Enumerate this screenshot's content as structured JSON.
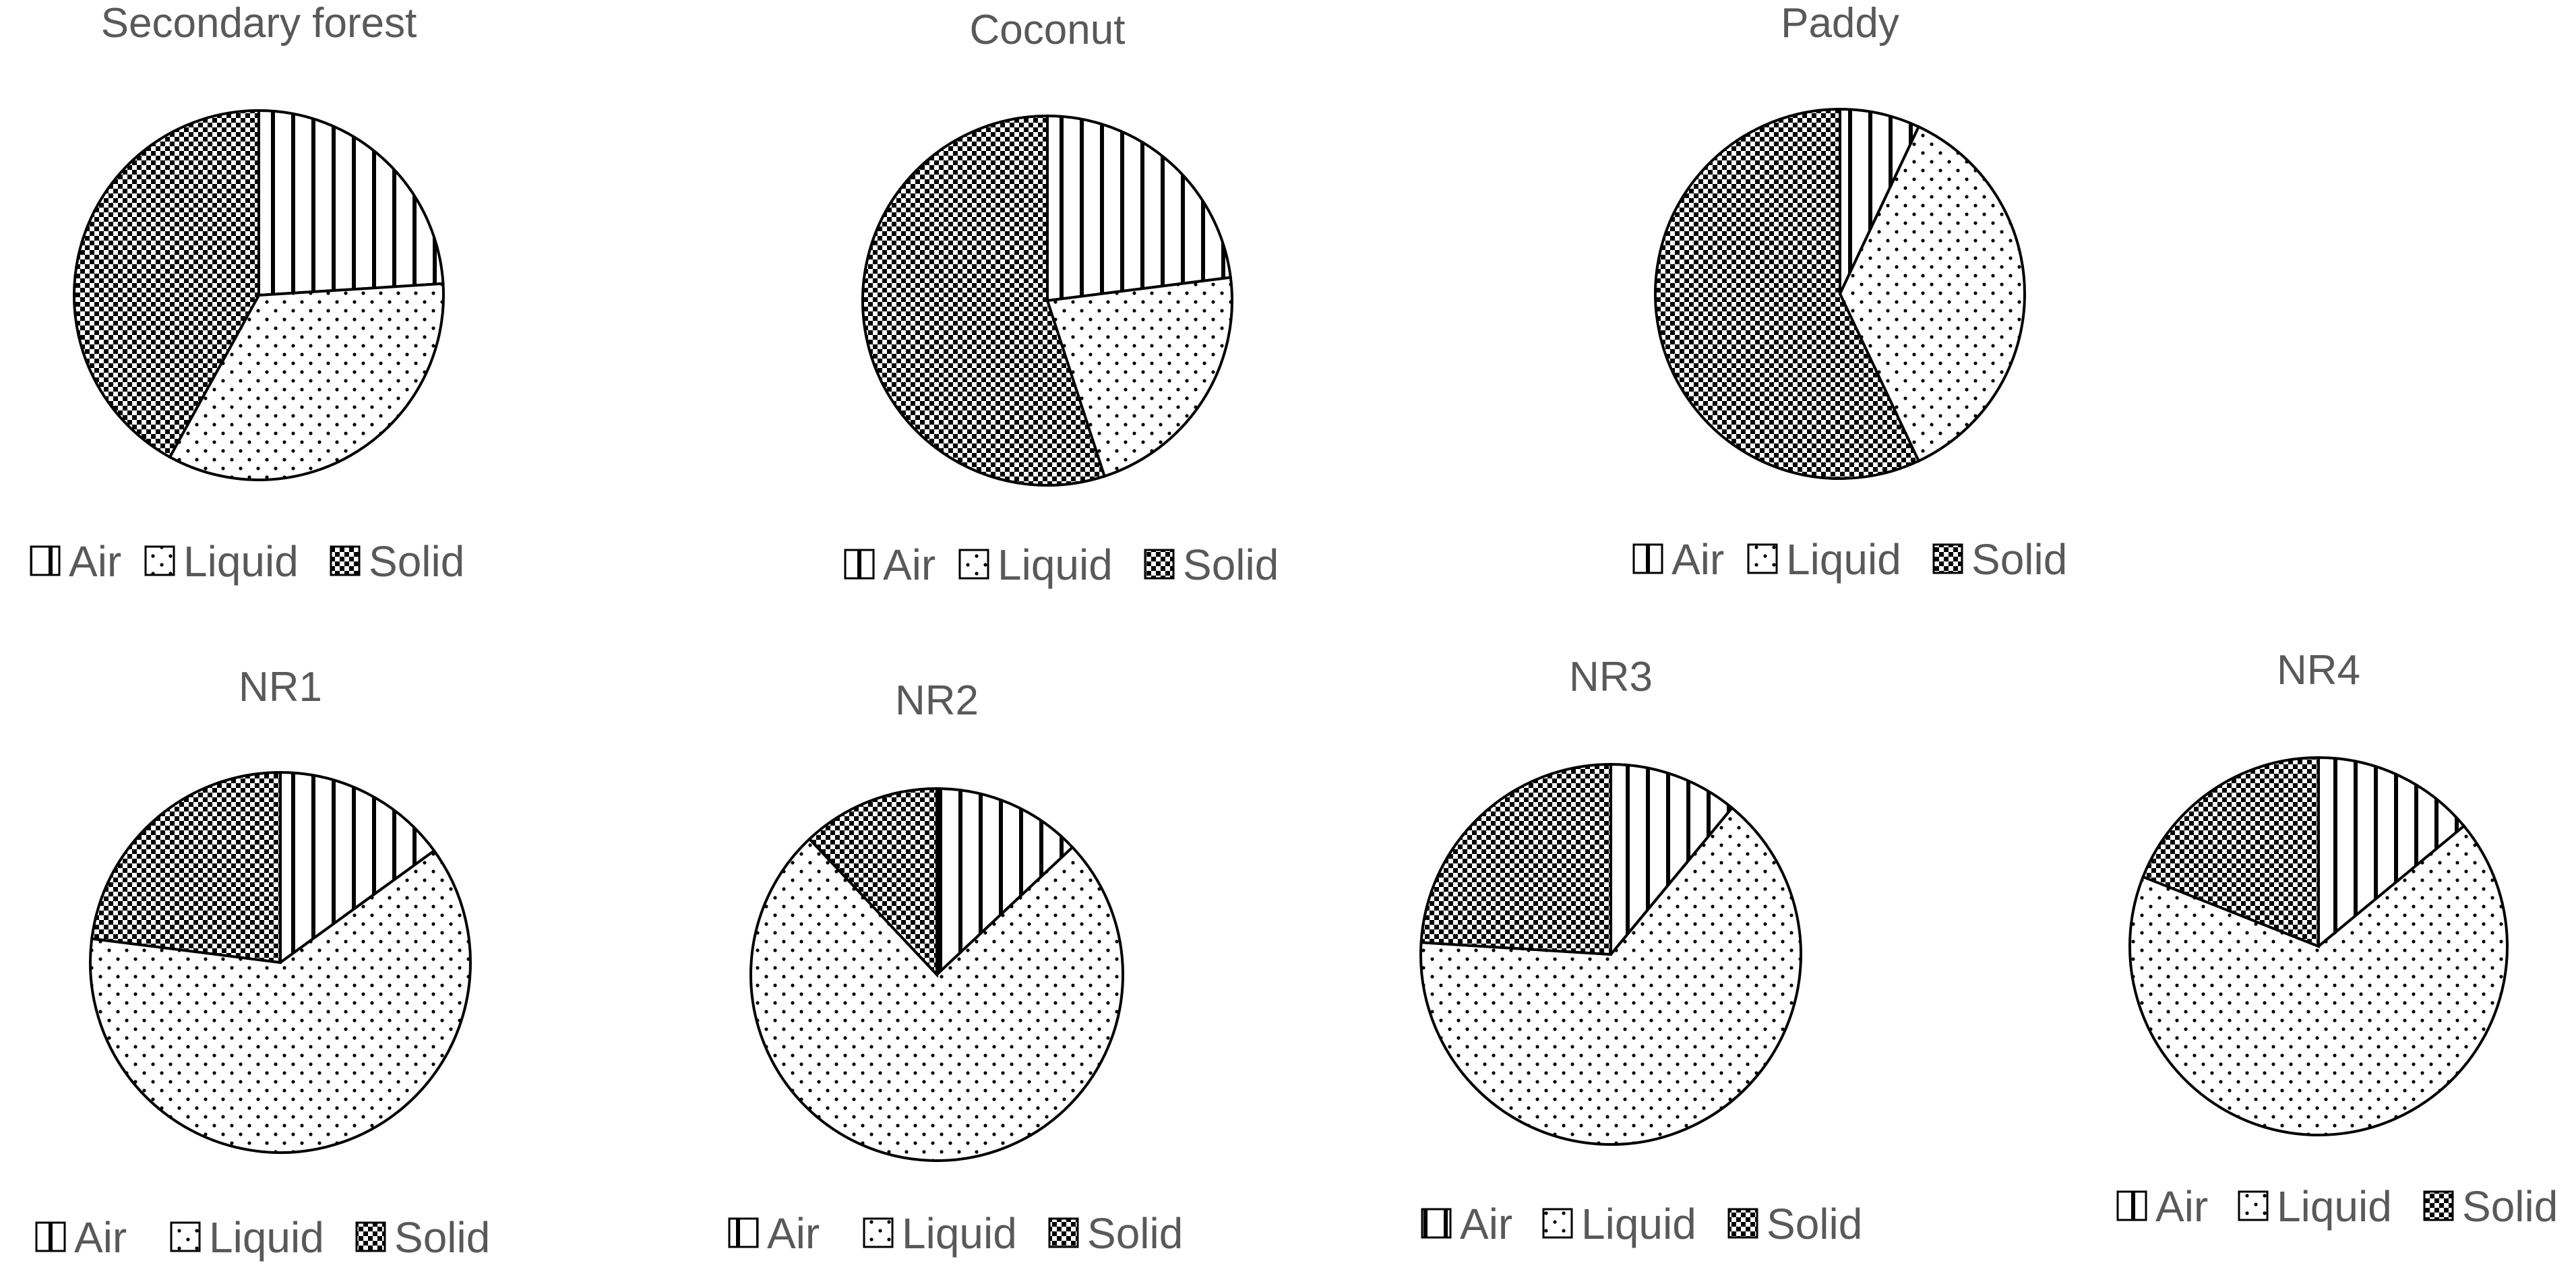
{
  "chart_data": [
    {
      "type": "pie",
      "title": "Secondary forest",
      "categories": [
        "Air",
        "Liquid",
        "Solid"
      ],
      "values": [
        24,
        34,
        42
      ],
      "legend": "bottom"
    },
    {
      "type": "pie",
      "title": "Coconut",
      "categories": [
        "Air",
        "Liquid",
        "Solid"
      ],
      "values": [
        23,
        22,
        55
      ],
      "legend": "bottom"
    },
    {
      "type": "pie",
      "title": "Paddy",
      "categories": [
        "Air",
        "Liquid",
        "Solid"
      ],
      "values": [
        7,
        36,
        57
      ],
      "legend": "bottom"
    },
    {
      "type": "pie",
      "title": "NR1",
      "categories": [
        "Air",
        "Liquid",
        "Solid"
      ],
      "values": [
        15,
        62,
        23
      ],
      "legend": "bottom"
    },
    {
      "type": "pie",
      "title": "NR2",
      "categories": [
        "Air",
        "Liquid",
        "Solid"
      ],
      "values": [
        13,
        75,
        12
      ],
      "legend": "bottom"
    },
    {
      "type": "pie",
      "title": "NR3",
      "categories": [
        "Air",
        "Liquid",
        "Solid"
      ],
      "values": [
        11,
        65,
        24
      ],
      "legend": "bottom"
    },
    {
      "type": "pie",
      "title": "NR4",
      "categories": [
        "Air",
        "Liquid",
        "Solid"
      ],
      "values": [
        14,
        67,
        19
      ],
      "legend": "bottom"
    }
  ],
  "patterns": {
    "Air": "vertical-lines",
    "Liquid": "sparse-dots",
    "Solid": "dense-checker"
  },
  "colors": {
    "stroke": "#000000",
    "text": "#595959",
    "background": "#ffffff"
  }
}
